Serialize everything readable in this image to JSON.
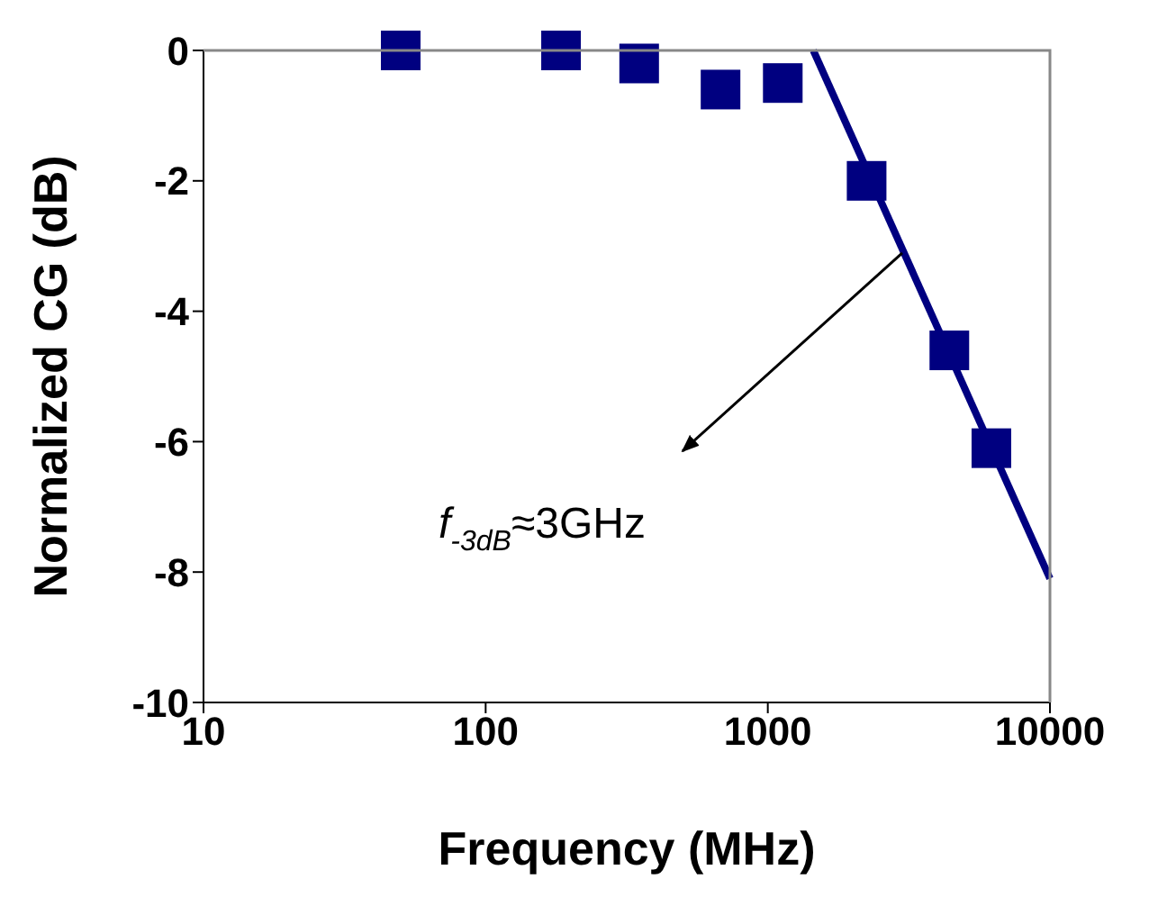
{
  "chart_data": {
    "type": "scatter",
    "xlabel": "Frequency (MHz)",
    "ylabel": "Normalized CG (dB)",
    "log": "x",
    "xlim": [
      10,
      10000
    ],
    "xticks": [
      10,
      100,
      1000,
      10000
    ],
    "ylim": [
      -10,
      0
    ],
    "yticks": [
      0,
      -2,
      -4,
      -6,
      -8,
      -10
    ],
    "grid": false,
    "legend": false,
    "series": [
      {
        "type": "scatter",
        "color": "#000080",
        "marker": "square",
        "x": [
          50,
          185,
          350,
          680,
          1130,
          2240,
          4400,
          6200
        ],
        "values": [
          0,
          0,
          -0.2,
          -0.6,
          -0.5,
          -2.0,
          -4.6,
          -6.1
        ]
      },
      {
        "type": "line",
        "color": "#000080",
        "x": [
          1450,
          10000
        ],
        "values": [
          0,
          -8.1
        ]
      }
    ],
    "annotations": [
      "f$_{-3dB}$≈3GHz"
    ]
  }
}
